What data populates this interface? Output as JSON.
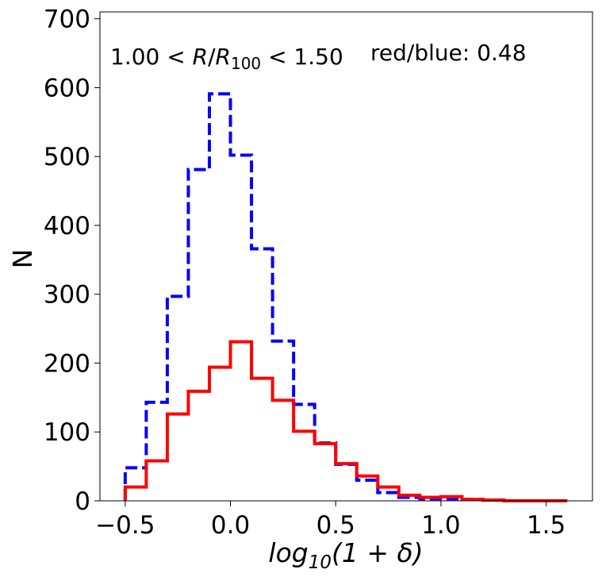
{
  "chart_data": {
    "type": "histogram",
    "xlabel": {
      "prefix": "log",
      "sub": "10",
      "suffix": "(1 + δ)"
    },
    "ylabel": "N",
    "xlim": [
      -0.62,
      1.72
    ],
    "ylim": [
      0,
      710
    ],
    "x_ticks": [
      -0.5,
      0.0,
      0.5,
      1.0,
      1.5
    ],
    "x_tick_labels": [
      "−0.5",
      "0.0",
      "0.5",
      "1.0",
      "1.5"
    ],
    "y_ticks": [
      0,
      100,
      200,
      300,
      400,
      500,
      600,
      700
    ],
    "y_tick_labels": [
      "0",
      "100",
      "200",
      "300",
      "400",
      "500",
      "600",
      "700"
    ],
    "bin_edges": [
      -0.5,
      -0.4,
      -0.3,
      -0.2,
      -0.1,
      0.0,
      0.1,
      0.2,
      0.3,
      0.4,
      0.5,
      0.6,
      0.7,
      0.8,
      0.9,
      1.0,
      1.1,
      1.2,
      1.3,
      1.4,
      1.5,
      1.6
    ],
    "series": [
      {
        "color": "#0000ff",
        "style": "dashed",
        "values": [
          48,
          143,
          297,
          481,
          591,
          502,
          366,
          232,
          140,
          84,
          53,
          30,
          12,
          5,
          3,
          3,
          2,
          1,
          0,
          0,
          0
        ]
      },
      {
        "color": "#ff0000",
        "style": "solid",
        "values": [
          20,
          58,
          126,
          159,
          194,
          231,
          178,
          146,
          101,
          83,
          54,
          36,
          20,
          8,
          5,
          6,
          2,
          1,
          0,
          0,
          0
        ]
      }
    ],
    "annotations": {
      "range_label": {
        "left": "1.00 < ",
        "var": "R",
        "slash": "/",
        "var2": "R",
        "sub": "100",
        "right": " < 1.50"
      },
      "ratio_label": "red/blue: 0.48"
    }
  }
}
